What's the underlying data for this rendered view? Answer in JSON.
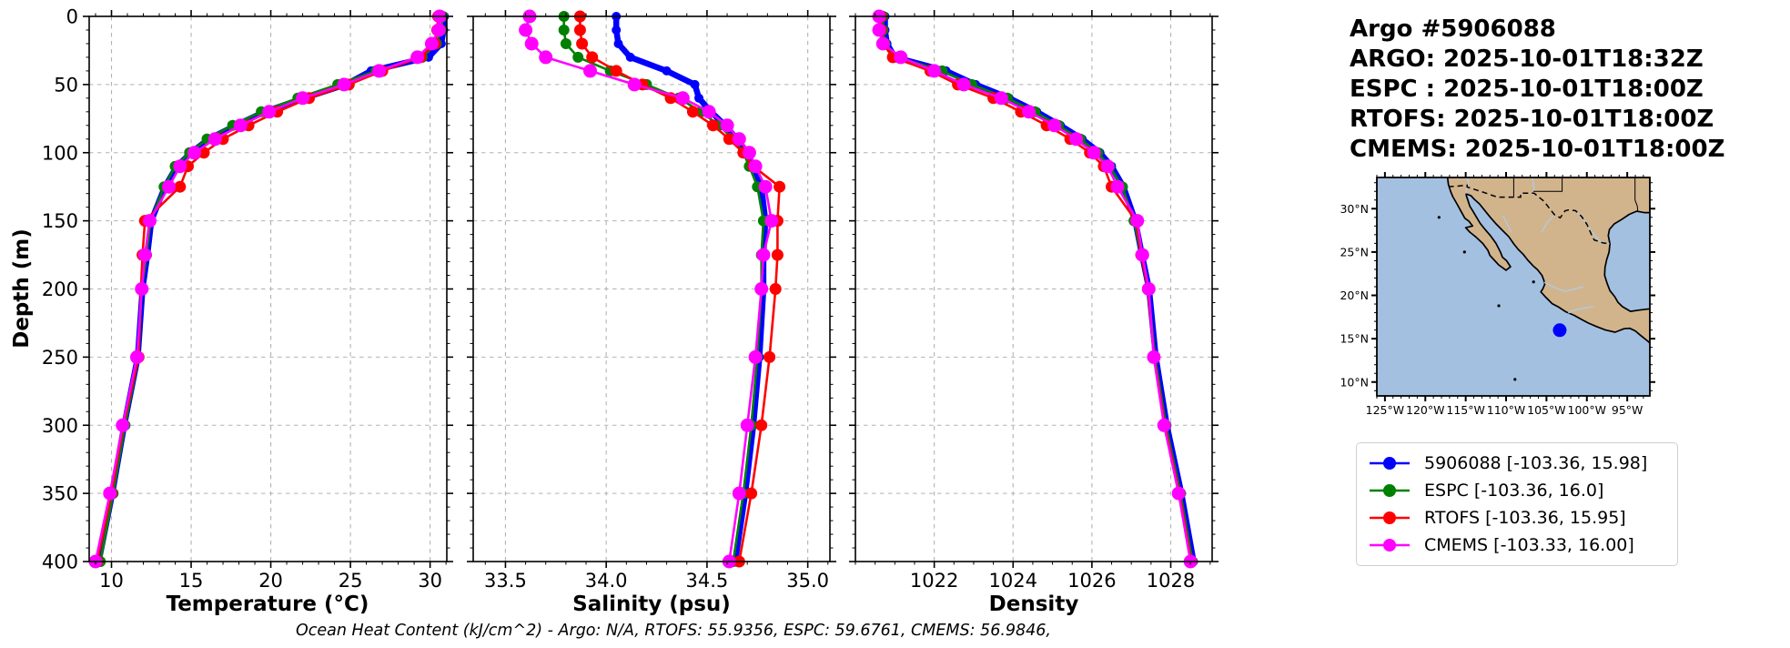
{
  "header": {
    "title": "Argo #5906088",
    "lines": [
      "ARGO: 2025-10-01T18:32Z",
      "ESPC : 2025-10-01T18:00Z",
      "RTOFS: 2025-10-01T18:00Z",
      "CMEMS: 2025-10-01T18:00Z"
    ]
  },
  "footer": {
    "text": "Ocean Heat Content (kJ/cm^2) - Argo: N/A,  RTOFS: 55.9356,  ESPC: 59.6761,  CMEMS: 56.9846,"
  },
  "colors": {
    "argo": "#0000ff",
    "espc": "#008000",
    "rtofs": "#ff0000",
    "cmems": "#ff00ff",
    "grid": "#b2b2b2",
    "land": "#d2b48c",
    "ocean": "#a3c0e0",
    "river": "#aecce8",
    "coast": "#000000"
  },
  "legend": {
    "items": [
      {
        "label": "5906088 [-103.36, 15.98]",
        "color": "#0000ff"
      },
      {
        "label": "ESPC [-103.36, 16.0]",
        "color": "#008000"
      },
      {
        "label": "RTOFS [-103.36, 15.95]",
        "color": "#ff0000"
      },
      {
        "label": "CMEMS [-103.33, 16.00]",
        "color": "#ff00ff"
      }
    ]
  },
  "depth_axis": {
    "label": "Depth (m)",
    "range": [
      0,
      400
    ],
    "ticks": [
      0,
      50,
      100,
      150,
      200,
      250,
      300,
      350,
      400
    ],
    "minor_step": 10
  },
  "chart_data": [
    {
      "type": "line",
      "xlabel": "Temperature (°C)",
      "xlim": [
        8.6,
        31.05
      ],
      "xticks": [
        10,
        15,
        20,
        25,
        30
      ],
      "xtick_labels": [
        "10",
        "15",
        "20",
        "25",
        "30"
      ],
      "x_minor_step": 1,
      "depths": [
        0,
        10,
        20,
        30,
        40,
        50,
        60,
        70,
        80,
        90,
        100,
        110,
        125,
        150,
        175,
        200,
        250,
        300,
        350,
        400
      ],
      "series": [
        {
          "name": "5906088",
          "color": "#0000ff",
          "line_width": 6.5,
          "marker_radius": 5,
          "values": [
            30.9,
            30.85,
            30.7,
            29.9,
            26.3,
            24.7,
            22.1,
            19.6,
            17.8,
            16.1,
            15.0,
            14.1,
            13.35,
            12.5,
            12.25,
            11.95,
            11.65,
            10.8,
            10.05,
            9.2
          ]
        },
        {
          "name": "ESPC",
          "color": "#008000",
          "line_width": 2.6,
          "marker_radius": 6,
          "values": [
            30.8,
            30.7,
            30.4,
            29.5,
            26.6,
            24.2,
            21.7,
            19.4,
            17.6,
            16.0,
            14.9,
            14.0,
            13.3,
            12.45,
            12.2,
            11.9,
            11.7,
            10.85,
            10.1,
            9.3
          ]
        },
        {
          "name": "RTOFS",
          "color": "#ff0000",
          "line_width": 2.6,
          "marker_radius": 6.5,
          "values": [
            30.5,
            30.45,
            30.3,
            29.4,
            27.0,
            24.9,
            22.4,
            20.4,
            18.6,
            17.0,
            15.8,
            14.8,
            14.3,
            12.1,
            11.95,
            11.85,
            11.7,
            10.75,
            10.0,
            9.1
          ]
        },
        {
          "name": "CMEMS",
          "color": "#ff00ff",
          "line_width": 2.6,
          "marker_radius": 7.5,
          "values": [
            30.6,
            30.55,
            30.1,
            29.2,
            26.8,
            24.6,
            22.0,
            19.9,
            18.1,
            16.5,
            15.2,
            14.3,
            13.6,
            12.4,
            12.1,
            11.9,
            11.6,
            10.7,
            9.9,
            9.0
          ]
        }
      ]
    },
    {
      "type": "line",
      "xlabel": "Salinity (psu)",
      "xlim": [
        33.34,
        35.11
      ],
      "xticks": [
        33.5,
        34.0,
        34.5,
        35.0
      ],
      "xtick_labels": [
        "33.5",
        "34.0",
        "34.5",
        "35.0"
      ],
      "x_minor_step": 0.1,
      "depths": [
        0,
        10,
        20,
        30,
        40,
        50,
        60,
        70,
        80,
        90,
        100,
        110,
        125,
        150,
        175,
        200,
        250,
        300,
        350,
        400
      ],
      "series": [
        {
          "name": "5906088",
          "color": "#0000ff",
          "line_width": 6.5,
          "marker_radius": 5,
          "values": [
            34.05,
            34.05,
            34.06,
            34.12,
            34.3,
            34.44,
            34.46,
            34.52,
            34.59,
            34.65,
            34.7,
            34.73,
            34.77,
            34.79,
            34.78,
            34.78,
            34.76,
            34.73,
            34.69,
            34.64
          ]
        },
        {
          "name": "ESPC",
          "color": "#008000",
          "line_width": 2.6,
          "marker_radius": 6,
          "values": [
            33.79,
            33.79,
            33.8,
            33.86,
            34.02,
            34.2,
            34.36,
            34.47,
            34.56,
            34.63,
            34.68,
            34.71,
            34.75,
            34.78,
            34.77,
            34.77,
            34.75,
            34.72,
            34.68,
            34.63
          ]
        },
        {
          "name": "RTOFS",
          "color": "#ff0000",
          "line_width": 2.6,
          "marker_radius": 6.5,
          "values": [
            33.87,
            33.87,
            33.88,
            33.93,
            34.05,
            34.18,
            34.32,
            34.43,
            34.53,
            34.61,
            34.68,
            34.73,
            34.86,
            34.85,
            34.85,
            34.84,
            34.81,
            34.77,
            34.72,
            34.66
          ]
        },
        {
          "name": "CMEMS",
          "color": "#ff00ff",
          "line_width": 2.6,
          "marker_radius": 7.5,
          "values": [
            33.62,
            33.6,
            33.63,
            33.7,
            33.92,
            34.14,
            34.38,
            34.51,
            34.6,
            34.66,
            34.71,
            34.74,
            34.79,
            34.82,
            34.78,
            34.77,
            34.74,
            34.7,
            34.66,
            34.61
          ]
        }
      ]
    },
    {
      "type": "line",
      "xlabel": "Density",
      "xlim": [
        1020.0,
        1029.05
      ],
      "xticks": [
        1022,
        1024,
        1026,
        1028
      ],
      "xtick_labels": [
        "1022",
        "1024",
        "1026",
        "1028"
      ],
      "x_minor_step": 0.5,
      "depths": [
        0,
        10,
        20,
        30,
        40,
        50,
        60,
        70,
        80,
        90,
        100,
        110,
        125,
        150,
        175,
        200,
        250,
        300,
        350,
        400
      ],
      "series": [
        {
          "name": "5906088",
          "color": "#0000ff",
          "line_width": 6.5,
          "marker_radius": 5,
          "values": [
            1020.75,
            1020.75,
            1020.8,
            1021.0,
            1022.3,
            1023.05,
            1023.9,
            1024.6,
            1025.2,
            1025.75,
            1026.2,
            1026.5,
            1026.8,
            1027.1,
            1027.27,
            1027.45,
            1027.62,
            1027.9,
            1028.27,
            1028.58
          ]
        },
        {
          "name": "ESPC",
          "color": "#008000",
          "line_width": 2.6,
          "marker_radius": 6,
          "values": [
            1020.7,
            1020.7,
            1020.75,
            1021.05,
            1022.2,
            1022.95,
            1023.85,
            1024.55,
            1025.15,
            1025.7,
            1026.15,
            1026.45,
            1026.77,
            1027.07,
            1027.25,
            1027.43,
            1027.6,
            1027.88,
            1028.25,
            1028.55
          ]
        },
        {
          "name": "RTOFS",
          "color": "#ff0000",
          "line_width": 2.6,
          "marker_radius": 6.5,
          "values": [
            1020.65,
            1020.65,
            1020.7,
            1020.95,
            1021.9,
            1022.6,
            1023.5,
            1024.2,
            1024.85,
            1025.45,
            1025.95,
            1026.3,
            1026.5,
            1027.12,
            1027.25,
            1027.42,
            1027.58,
            1027.85,
            1028.22,
            1028.52
          ]
        },
        {
          "name": "CMEMS",
          "color": "#ff00ff",
          "line_width": 2.6,
          "marker_radius": 7.5,
          "values": [
            1020.6,
            1020.6,
            1020.7,
            1021.15,
            1022.0,
            1022.75,
            1023.7,
            1024.4,
            1025.05,
            1025.6,
            1026.05,
            1026.4,
            1026.65,
            1027.15,
            1027.28,
            1027.44,
            1027.57,
            1027.83,
            1028.2,
            1028.5
          ]
        }
      ]
    }
  ],
  "map": {
    "extent": {
      "lon_min": -126.0,
      "lon_max": -92.2,
      "lat_min": 8.4,
      "lat_max": 33.6
    },
    "lon_tick_values": [
      -125,
      -120,
      -115,
      -110,
      -105,
      -100,
      -95
    ],
    "lon_tick_labels": [
      "125°W",
      "120°W",
      "115°W",
      "110°W",
      "105°W",
      "100°W",
      "95°W"
    ],
    "lat_tick_values": [
      10,
      15,
      20,
      25,
      30
    ],
    "lat_tick_labels": [
      "10°N",
      "15°N",
      "20°N",
      "25°N",
      "30°N"
    ],
    "minor_step": 1,
    "marker": {
      "lon": -103.36,
      "lat": 15.98,
      "color": "#0000ff"
    },
    "geometry": {
      "land": [
        [
          -117.25,
          33.6
        ],
        [
          -117.15,
          32.8
        ],
        [
          -116.85,
          31.95
        ],
        [
          -116.6,
          31.4
        ],
        [
          -116.05,
          30.5
        ],
        [
          -115.7,
          29.9
        ],
        [
          -115.1,
          28.9
        ],
        [
          -114.6,
          28.55
        ],
        [
          -114.15,
          28.0
        ],
        [
          -115.0,
          27.8
        ],
        [
          -114.5,
          27.3
        ],
        [
          -113.7,
          26.7
        ],
        [
          -112.9,
          26.0
        ],
        [
          -112.25,
          25.2
        ],
        [
          -112.0,
          24.6
        ],
        [
          -111.6,
          24.2
        ],
        [
          -110.9,
          23.5
        ],
        [
          -110.0,
          22.9
        ],
        [
          -109.45,
          23.3
        ],
        [
          -109.95,
          24.0
        ],
        [
          -110.45,
          24.4
        ],
        [
          -110.7,
          25.0
        ],
        [
          -111.25,
          26.0
        ],
        [
          -111.95,
          26.9
        ],
        [
          -112.6,
          27.6
        ],
        [
          -113.2,
          28.3
        ],
        [
          -113.65,
          29.0
        ],
        [
          -114.1,
          29.7
        ],
        [
          -114.5,
          30.3
        ],
        [
          -114.7,
          30.9
        ],
        [
          -114.9,
          31.45
        ],
        [
          -114.95,
          31.7
        ],
        [
          -114.35,
          31.5
        ],
        [
          -113.9,
          31.05
        ],
        [
          -113.3,
          30.55
        ],
        [
          -112.6,
          29.75
        ],
        [
          -111.9,
          28.95
        ],
        [
          -111.2,
          28.2
        ],
        [
          -110.35,
          27.4
        ],
        [
          -109.65,
          26.75
        ],
        [
          -109.05,
          25.95
        ],
        [
          -108.5,
          25.3
        ],
        [
          -107.9,
          24.75
        ],
        [
          -107.3,
          24.05
        ],
        [
          -106.65,
          23.4
        ],
        [
          -106.1,
          22.95
        ],
        [
          -105.55,
          22.3
        ],
        [
          -105.35,
          21.8
        ],
        [
          -105.2,
          21.3
        ],
        [
          -105.45,
          20.75
        ],
        [
          -105.7,
          20.4
        ],
        [
          -105.05,
          19.75
        ],
        [
          -104.3,
          19.05
        ],
        [
          -103.5,
          18.65
        ],
        [
          -102.6,
          18.1
        ],
        [
          -101.6,
          17.7
        ],
        [
          -100.6,
          17.2
        ],
        [
          -99.8,
          16.8
        ],
        [
          -98.8,
          16.4
        ],
        [
          -97.7,
          16.0
        ],
        [
          -96.5,
          15.75
        ],
        [
          -95.4,
          16.15
        ],
        [
          -94.7,
          16.2
        ],
        [
          -94.0,
          15.9
        ],
        [
          -93.3,
          15.35
        ],
        [
          -92.5,
          14.75
        ],
        [
          -92.2,
          14.5
        ],
        [
          -92.2,
          18.45
        ],
        [
          -93.5,
          18.3
        ],
        [
          -94.6,
          18.15
        ],
        [
          -95.6,
          18.7
        ],
        [
          -96.15,
          19.2
        ],
        [
          -96.55,
          19.85
        ],
        [
          -97.15,
          20.55
        ],
        [
          -97.5,
          21.4
        ],
        [
          -97.8,
          22.3
        ],
        [
          -97.75,
          23.2
        ],
        [
          -97.55,
          24.1
        ],
        [
          -97.25,
          25.0
        ],
        [
          -97.15,
          25.95
        ],
        [
          -97.35,
          26.9
        ],
        [
          -97.2,
          27.6
        ],
        [
          -96.6,
          28.25
        ],
        [
          -95.7,
          28.75
        ],
        [
          -94.75,
          29.35
        ],
        [
          -93.85,
          29.7
        ],
        [
          -92.9,
          29.55
        ],
        [
          -92.2,
          29.55
        ],
        [
          -92.2,
          33.6
        ]
      ],
      "us_mexico_border": [
        [
          -117.15,
          32.54
        ],
        [
          -116.0,
          32.6
        ],
        [
          -114.82,
          32.72
        ],
        [
          -114.82,
          32.5
        ],
        [
          -113.0,
          31.95
        ],
        [
          -111.07,
          31.33
        ],
        [
          -108.2,
          31.33
        ],
        [
          -108.2,
          31.78
        ],
        [
          -106.53,
          31.78
        ],
        [
          -106.3,
          31.6
        ],
        [
          -105.3,
          30.85
        ],
        [
          -104.6,
          30.0
        ],
        [
          -104.0,
          29.3
        ],
        [
          -103.3,
          28.95
        ],
        [
          -102.7,
          29.75
        ],
        [
          -102.3,
          29.85
        ],
        [
          -101.4,
          29.77
        ],
        [
          -100.65,
          29.1
        ],
        [
          -100.0,
          28.2
        ],
        [
          -99.45,
          27.05
        ],
        [
          -99.1,
          26.4
        ],
        [
          -98.0,
          26.05
        ],
        [
          -97.15,
          25.95
        ]
      ],
      "state_borders": [
        [
          [
            -109.05,
            33.6
          ],
          [
            -109.05,
            31.33
          ]
        ],
        [
          [
            -103.06,
            33.6
          ],
          [
            -103.06,
            32.0
          ],
          [
            -106.62,
            32.0
          ]
        ],
        [
          [
            -94.04,
            33.6
          ],
          [
            -94.04,
            31.0
          ],
          [
            -93.75,
            30.3
          ],
          [
            -93.7,
            29.75
          ]
        ]
      ],
      "rivers": [
        [
          [
            -106.75,
            33.6
          ],
          [
            -106.55,
            32.4
          ],
          [
            -106.53,
            31.78
          ]
        ],
        [
          [
            -101.4,
            29.77
          ],
          [
            -100.3,
            28.6
          ],
          [
            -99.5,
            27.4
          ],
          [
            -98.3,
            26.2
          ],
          [
            -97.2,
            25.95
          ]
        ],
        [
          [
            -104.1,
            29.25
          ],
          [
            -104.9,
            28.4
          ],
          [
            -105.6,
            27.3
          ]
        ],
        [
          [
            -105.3,
            21.5
          ],
          [
            -104.0,
            20.9
          ],
          [
            -102.7,
            20.45
          ],
          [
            -101.4,
            20.75
          ],
          [
            -100.4,
            21.0
          ]
        ],
        [
          [
            -110.4,
            29.2
          ],
          [
            -109.9,
            28.3
          ],
          [
            -109.35,
            27.3
          ]
        ],
        [
          [
            -114.95,
            33.6
          ],
          [
            -114.6,
            33.0
          ],
          [
            -114.75,
            32.72
          ],
          [
            -114.9,
            32.1
          ],
          [
            -114.95,
            31.75
          ]
        ],
        [
          [
            -99.2,
            18.7
          ],
          [
            -100.6,
            18.5
          ],
          [
            -101.8,
            18.2
          ],
          [
            -102.3,
            17.95
          ]
        ]
      ],
      "islands": [
        [
          -118.3,
          29.0
        ],
        [
          -115.15,
          25.0
        ],
        [
          -106.6,
          21.55
        ],
        [
          -110.9,
          18.8
        ],
        [
          -108.9,
          10.3
        ]
      ]
    }
  }
}
